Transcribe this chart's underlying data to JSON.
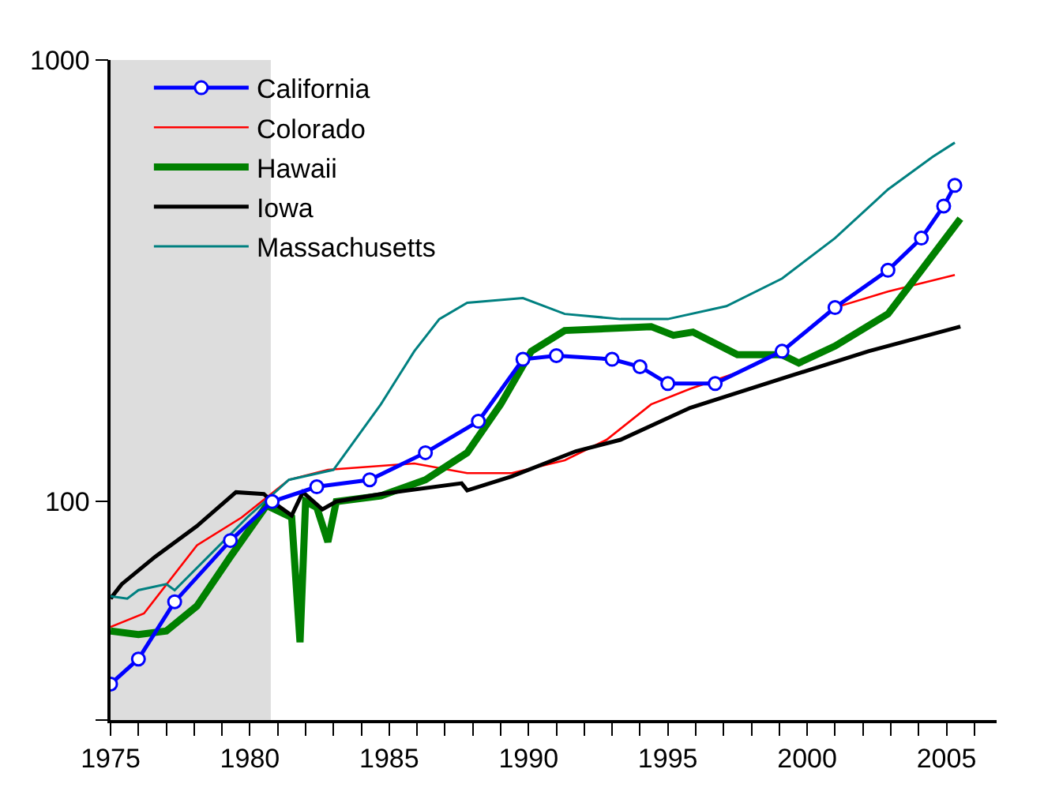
{
  "chart_data": {
    "type": "line",
    "log": true,
    "grid": false,
    "legend": "top left",
    "xlim": [
      1975,
      2006.8
    ],
    "ylim": [
      32,
      1000
    ],
    "xticks": [
      1975,
      {
        "value": 1976,
        "label": null
      },
      {
        "value": 1977,
        "label": null
      },
      {
        "value": 1978,
        "label": null
      },
      {
        "value": 1979,
        "label": null
      },
      1980,
      {
        "value": 1981,
        "label": null
      },
      {
        "value": 1982,
        "label": null
      },
      {
        "value": 1983,
        "label": null
      },
      {
        "value": 1984,
        "label": null
      },
      1985,
      {
        "value": 1986,
        "label": null
      },
      {
        "value": 1987,
        "label": null
      },
      {
        "value": 1988,
        "label": null
      },
      {
        "value": 1989,
        "label": null
      },
      1990,
      {
        "value": 1991,
        "label": null
      },
      {
        "value": 1992,
        "label": null
      },
      {
        "value": 1993,
        "label": null
      },
      {
        "value": 1994,
        "label": null
      },
      1995,
      {
        "value": 1996,
        "label": null
      },
      {
        "value": 1997,
        "label": null
      },
      {
        "value": 1998,
        "label": null
      },
      {
        "value": 1999,
        "label": null
      },
      2000,
      {
        "value": 2001,
        "label": null
      },
      {
        "value": 2002,
        "label": null
      },
      {
        "value": 2003,
        "label": null
      },
      {
        "value": 2004,
        "label": null
      },
      2005,
      {
        "value": 2006,
        "label": null
      }
    ],
    "yticks": [
      {
        "value": 32,
        "label": null
      },
      100,
      1000
    ],
    "bands": [
      {
        "axis": "x",
        "from": 1975,
        "to": 1980.75,
        "color": "#dddddd"
      }
    ],
    "series": [
      {
        "name": "California",
        "color": "#0000ff",
        "marker": "circle",
        "x": [
          1975.0,
          1976.0,
          1977.3,
          1979.3,
          1980.8,
          1982.4,
          1984.3,
          1986.3,
          1988.2,
          1989.8,
          1991.0,
          1993.0,
          1994.0,
          1995.0,
          1996.7,
          1999.1,
          2001.0,
          2002.9,
          2004.1,
          2004.9,
          2005.3
        ],
        "values": [
          38.6,
          44,
          59.3,
          81.6,
          100,
          108,
          112,
          129,
          152,
          210,
          214,
          210,
          202,
          185,
          185,
          219,
          275,
          334,
          395,
          467,
          520
        ]
      },
      {
        "name": "Colorado",
        "color": "#ff0000",
        "marker": "none",
        "x": [
          1975.0,
          1976.2,
          1978.1,
          1979.7,
          1981.4,
          1982.8,
          1985.9,
          1987.8,
          1989.4,
          1991.3,
          1992.8,
          1994.4,
          1995.8,
          1997.5,
          1999.1,
          2001.0,
          2002.9,
          2005.3
        ],
        "values": [
          52,
          55.8,
          79.6,
          92,
          112,
          118,
          122,
          116,
          116,
          124,
          138,
          166,
          180,
          196,
          219,
          275,
          299,
          326
        ]
      },
      {
        "name": "Hawaii",
        "color": "#008000",
        "marker": "none",
        "x": [
          1975.0,
          1976.0,
          1977.0,
          1978.1,
          1979.3,
          1980.6,
          1981.5,
          1981.8,
          1982.0,
          1982.4,
          1982.8,
          1983.1,
          1984.7,
          1986.3,
          1987.8,
          1989.0,
          1990.1,
          1991.3,
          1994.4,
          1995.2,
          1995.9,
          1997.5,
          1999.1,
          1999.7,
          2001.0,
          2002.9,
          2004.1,
          2005.5
        ],
        "values": [
          50.9,
          50,
          50.9,
          58,
          75,
          98,
          92,
          48,
          100,
          97,
          81,
          100,
          103,
          112,
          129,
          166,
          219,
          244,
          249,
          238,
          242,
          215,
          215,
          206,
          225,
          266,
          334,
          437
        ]
      },
      {
        "name": "Iowa",
        "color": "#000000",
        "marker": "none",
        "x": [
          1975.0,
          1975.4,
          1976.6,
          1978.1,
          1979.5,
          1980.5,
          1980.8,
          1981.5,
          1981.9,
          1982.6,
          1983.1,
          1984.7,
          1987.6,
          1987.8,
          1989.4,
          1991.7,
          1993.3,
          1995.8,
          1999.1,
          2002.2,
          2005.5
        ],
        "values": [
          60.3,
          65,
          75,
          88,
          105,
          104,
          100,
          93,
          105,
          96,
          100,
          104,
          110,
          106,
          114,
          130,
          138,
          163,
          190,
          219,
          249
        ]
      },
      {
        "name": "Massachusetts",
        "color": "#008080",
        "marker": "none",
        "x": [
          1975.0,
          1975.6,
          1976.0,
          1977.0,
          1977.3,
          1978.5,
          1979.9,
          1981.4,
          1983.0,
          1984.7,
          1985.9,
          1986.8,
          1987.8,
          1989.8,
          1991.3,
          1993.3,
          1995.0,
          1997.1,
          1999.1,
          2001.0,
          2002.9,
          2004.5,
          2005.3
        ],
        "values": [
          61,
          60.3,
          63,
          65,
          63,
          75,
          92,
          112,
          118,
          166,
          219,
          259,
          282,
          289,
          266,
          259,
          259,
          277,
          320,
          395,
          509,
          603,
          650
        ]
      }
    ]
  }
}
